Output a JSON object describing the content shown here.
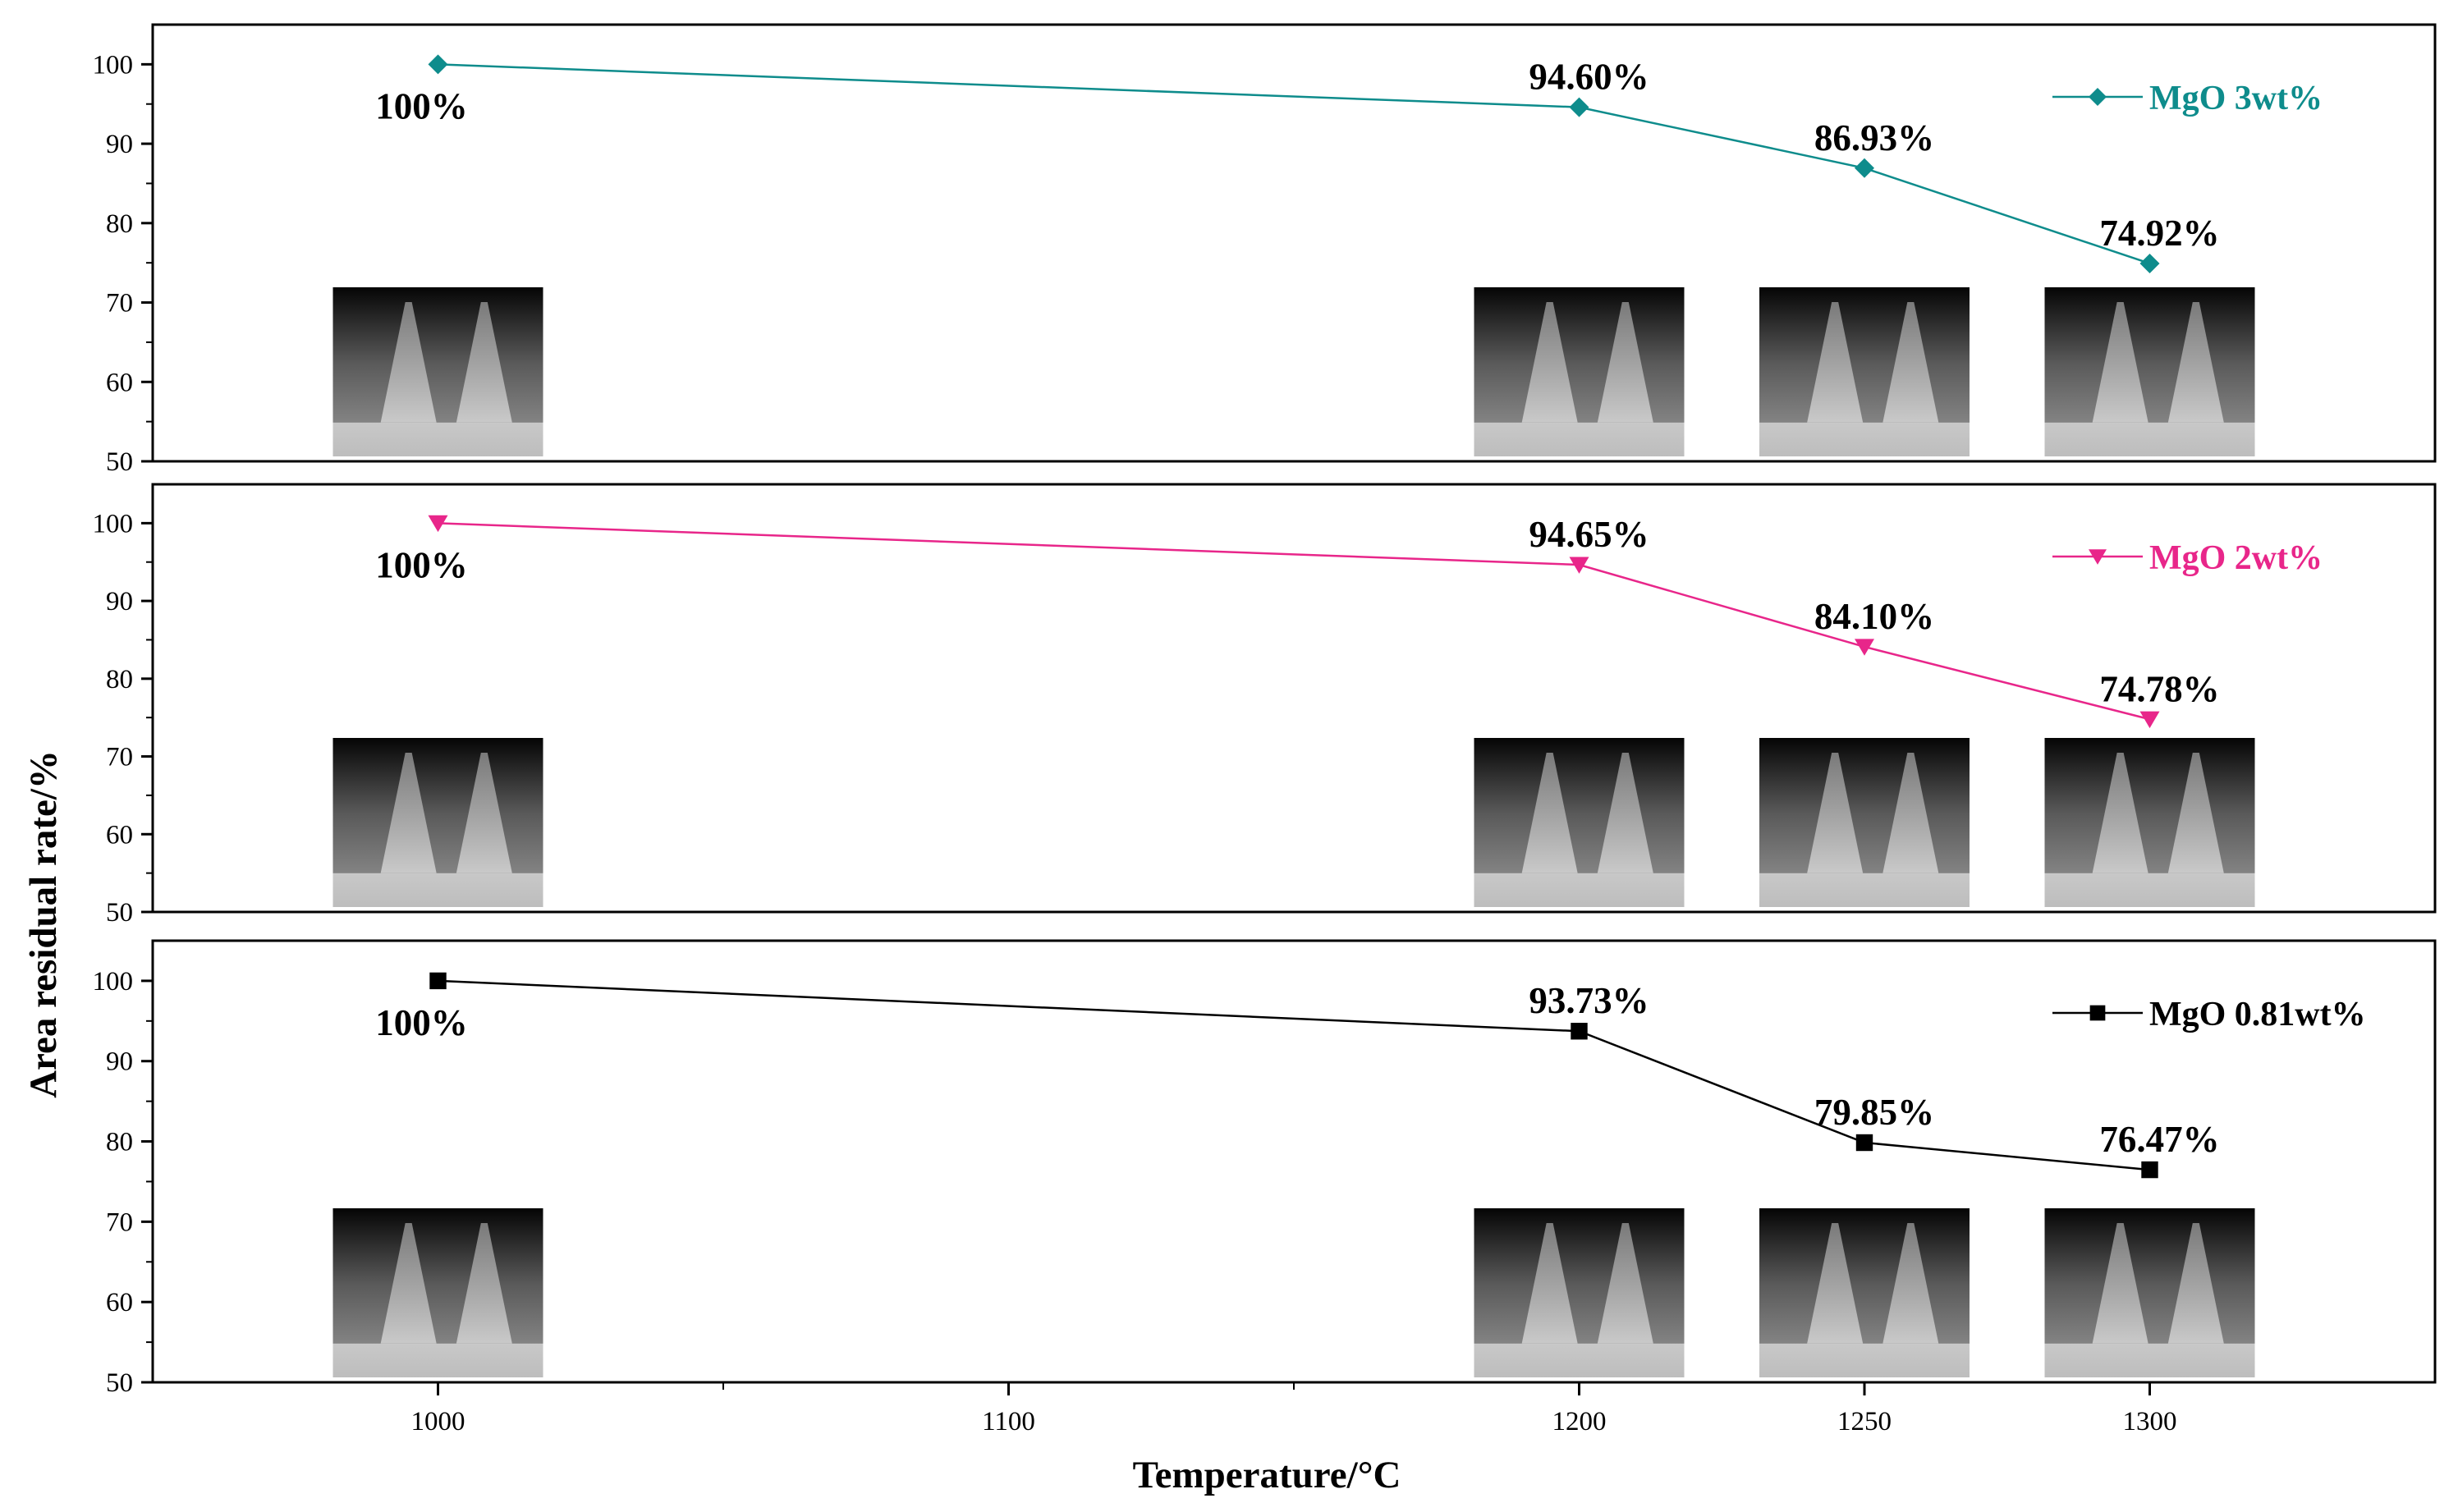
{
  "chart_data": {
    "type": "line",
    "xlabel": "Temperature/°C",
    "ylabel": "Area residual rate/%",
    "x_ticks": [
      1000,
      1100,
      1200,
      1250,
      1300
    ],
    "x_range": [
      950,
      1350
    ],
    "panels": [
      {
        "series": {
          "name": "MgO 3wt%",
          "marker": "diamond",
          "color": "#0e8c8c",
          "x": [
            1000,
            1200,
            1250,
            1300
          ],
          "y": [
            100,
            94.6,
            86.93,
            74.92
          ],
          "labels": [
            "100%",
            "94.60%",
            "86.93%",
            "74.92%"
          ]
        },
        "ylim": [
          50,
          105
        ],
        "y_ticks": [
          50,
          60,
          70,
          80,
          90,
          100
        ],
        "legend_position": "top-right",
        "inset_images_at_x": [
          1000,
          1200,
          1250,
          1300
        ]
      },
      {
        "series": {
          "name": "MgO 2wt%",
          "marker": "triangle-down",
          "color": "#e8268a",
          "x": [
            1000,
            1200,
            1250,
            1300
          ],
          "y": [
            100,
            94.65,
            84.1,
            74.78
          ],
          "labels": [
            "100%",
            "94.65%",
            "84.10%",
            "74.78%"
          ]
        },
        "ylim": [
          50,
          105
        ],
        "y_ticks": [
          50,
          60,
          70,
          80,
          90,
          100
        ],
        "legend_position": "top-right",
        "inset_images_at_x": [
          1000,
          1200,
          1250,
          1300
        ]
      },
      {
        "series": {
          "name": "MgO 0.81wt%",
          "marker": "square",
          "color": "#000000",
          "x": [
            1000,
            1200,
            1250,
            1300
          ],
          "y": [
            100,
            93.73,
            79.85,
            76.47
          ],
          "labels": [
            "100%",
            "93.73%",
            "79.85%",
            "76.47%"
          ]
        },
        "ylim": [
          50,
          105
        ],
        "y_ticks": [
          50,
          60,
          70,
          80,
          90,
          100
        ],
        "legend_position": "top-right",
        "inset_images_at_x": [
          1000,
          1200,
          1250,
          1300
        ]
      }
    ]
  }
}
